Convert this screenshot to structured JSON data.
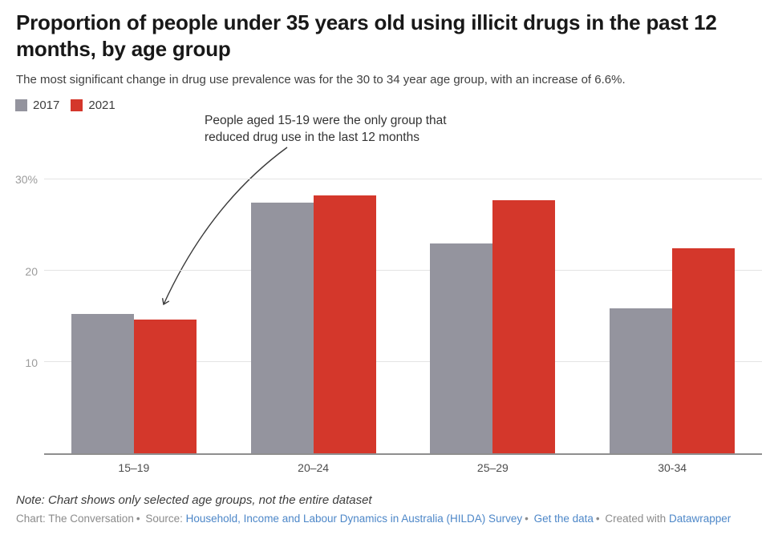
{
  "chart_data": {
    "type": "bar",
    "title": "Proportion of people under 35 years old using illicit drugs in the past 12 months, by age group",
    "subtitle": "The most significant change in drug use prevalence was for the 30 to 34 year age group, with an increase of 6.6%.",
    "categories": [
      "15–19",
      "20–24",
      "25–29",
      "30-34"
    ],
    "series": [
      {
        "name": "2017",
        "color": "#94949e",
        "values": [
          15.3,
          27.5,
          23.0,
          15.9
        ]
      },
      {
        "name": "2021",
        "color": "#d4372b",
        "values": [
          14.7,
          28.3,
          27.7,
          22.5
        ]
      }
    ],
    "xlabel": "",
    "ylabel": "",
    "y_ticks": [
      {
        "value": 10,
        "label": "10"
      },
      {
        "value": 20,
        "label": "20"
      },
      {
        "value": 30,
        "label": "30%"
      }
    ],
    "ylim": [
      0,
      33
    ],
    "grid": true,
    "legend_position": "top-left",
    "annotation": {
      "line1": "People aged 15-19 were the only group that",
      "line2": "reduced drug use in the last 12 months"
    }
  },
  "footer": {
    "note": "Note: Chart shows only selected age groups, not the entire dataset",
    "credits": {
      "chart_credit": "Chart: The Conversation",
      "separator": "•",
      "source_label": "Source:",
      "source_link": "Household, Income and Labour Dynamics in Australia (HILDA) Survey",
      "get_data_link": "Get the data",
      "created_with": "Created with",
      "datawrapper_link": "Datawrapper"
    }
  }
}
